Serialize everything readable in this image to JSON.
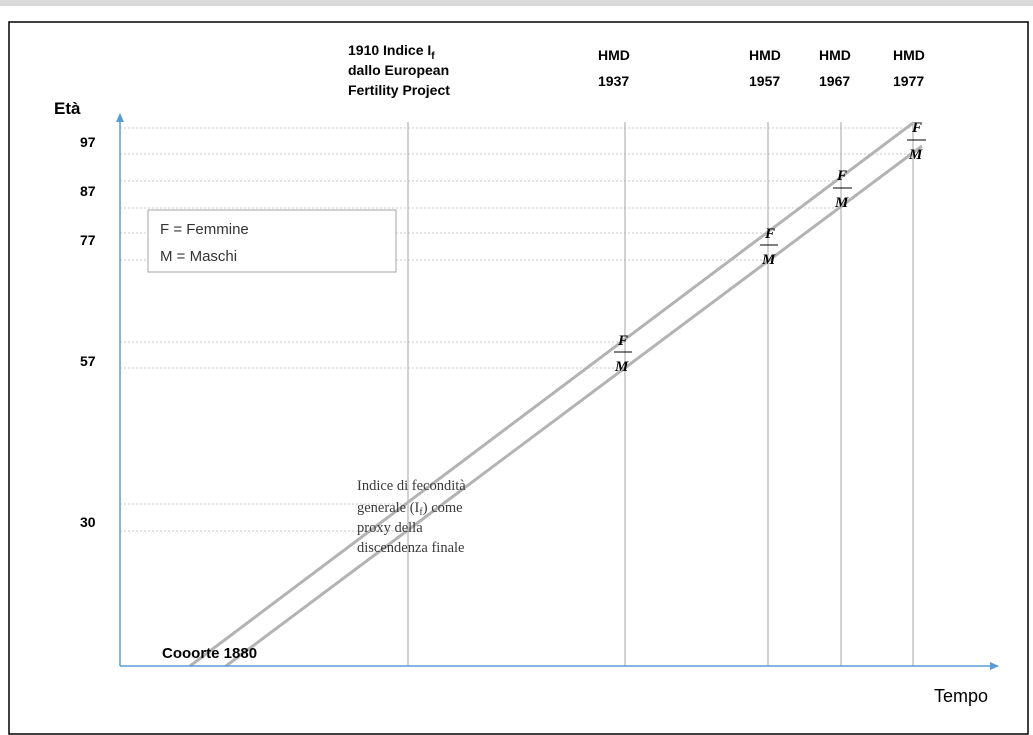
{
  "header_cut_text": "",
  "axes": {
    "y_label": "Età",
    "x_label": "Tempo",
    "y_ticks": [
      "97",
      "87",
      "77",
      "57",
      "30"
    ]
  },
  "columns": [
    {
      "lines": [
        "1910 Indice I",
        "dallo European",
        "Fertility Project"
      ],
      "subscript": "f"
    },
    {
      "lines": [
        "HMD",
        "1937"
      ]
    },
    {
      "lines": [
        "HMD",
        "1957"
      ]
    },
    {
      "lines": [
        "HMD",
        "1967"
      ]
    },
    {
      "lines": [
        "HMD",
        "1977"
      ]
    }
  ],
  "legend": {
    "line1": "F = Femmine",
    "line2": "M = Maschi"
  },
  "markers": [
    {
      "top": "F",
      "bottom": "M"
    },
    {
      "top": "F",
      "bottom": "M"
    },
    {
      "top": "F",
      "bottom": "M"
    },
    {
      "top": "F",
      "bottom": "M"
    }
  ],
  "annotation": {
    "lines": [
      "Indice di fecondità",
      "generale (I",
      "proxy della",
      "discendenza finale"
    ],
    "subscript": "f",
    "after_subscript": ") come"
  },
  "cohort_label": "Cooorte 1880",
  "colors": {
    "axis": "#5b9bd5",
    "cohort_lines": "#b3b3b3",
    "vertical_lines": "#a6a6a6",
    "guide_lines": "#c8c8c8",
    "border": "#000000"
  }
}
